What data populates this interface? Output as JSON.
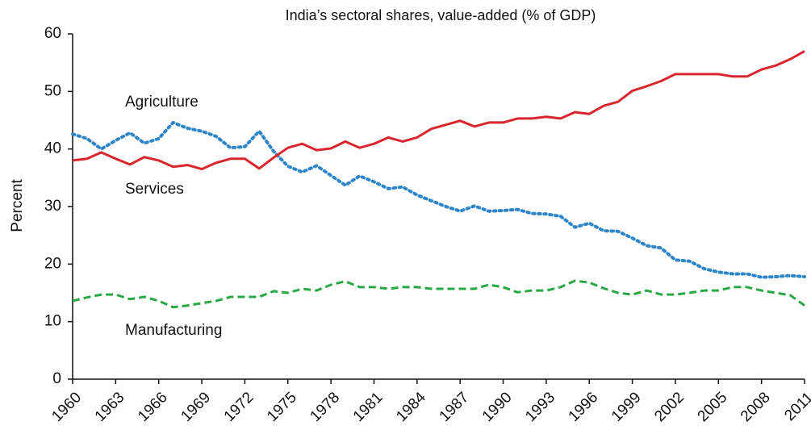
{
  "chart_data": {
    "type": "line",
    "title": "India’s sectoral shares, value-added (% of GDP)",
    "y_label": "Percent",
    "x": [
      1960,
      1961,
      1962,
      1963,
      1964,
      1965,
      1966,
      1967,
      1968,
      1969,
      1970,
      1971,
      1972,
      1973,
      1974,
      1975,
      1976,
      1977,
      1978,
      1979,
      1980,
      1981,
      1982,
      1983,
      1984,
      1985,
      1986,
      1987,
      1988,
      1989,
      1990,
      1991,
      1992,
      1993,
      1994,
      1995,
      1996,
      1997,
      1998,
      1999,
      2000,
      2001,
      2002,
      2003,
      2004,
      2005,
      2006,
      2007,
      2008,
      2009,
      2010,
      2011
    ],
    "series": [
      {
        "name": "Agriculture",
        "color": "#2e86c8",
        "style": "dotted",
        "values": [
          42.6,
          41.8,
          40,
          41.5,
          42.8,
          41,
          41.8,
          44.6,
          43.6,
          43.1,
          42.2,
          40.2,
          40.4,
          43.1,
          39.6,
          37,
          36,
          37.1,
          35.4,
          33.7,
          35.3,
          34.3,
          33.1,
          33.4,
          32,
          31,
          30,
          29.2,
          30.1,
          29.2,
          29.3,
          29.5,
          28.8,
          28.7,
          28.3,
          26.4,
          27.1,
          25.8,
          25.7,
          24.5,
          23.2,
          22.8,
          20.7,
          20.5,
          19.2,
          18.6,
          18.3,
          18.3,
          17.7,
          17.8,
          18,
          17.8
        ]
      },
      {
        "name": "Services",
        "color": "#d7262d",
        "style": "solid",
        "values": [
          38,
          38.3,
          39.4,
          38.3,
          37.3,
          38.6,
          38,
          36.9,
          37.2,
          36.5,
          37.6,
          38.3,
          38.3,
          36.6,
          38.5,
          40.2,
          40.9,
          39.8,
          40.1,
          41.3,
          40.2,
          40.9,
          42,
          41.3,
          42,
          43.5,
          44.2,
          44.9,
          43.9,
          44.6,
          44.6,
          45.3,
          45.3,
          45.6,
          45.3,
          46.4,
          46.1,
          47.5,
          48.2,
          50.1,
          50.9,
          51.8,
          53,
          53,
          53,
          53,
          52.6,
          52.6,
          53.8,
          54.5,
          55.6,
          57
        ]
      },
      {
        "name": "Manufacturing",
        "color": "#27a844",
        "style": "dashed",
        "values": [
          13.6,
          14.2,
          14.7,
          14.7,
          13.9,
          14.3,
          13.6,
          12.5,
          12.8,
          13.2,
          13.6,
          14.3,
          14.3,
          14.3,
          15.3,
          15,
          15.7,
          15.4,
          16.4,
          17,
          16,
          16,
          15.7,
          16,
          16,
          15.7,
          15.7,
          15.7,
          15.7,
          16.4,
          16,
          15.1,
          15.4,
          15.4,
          16,
          17.1,
          16.8,
          15.8,
          15,
          14.7,
          15.4,
          14.7,
          14.7,
          15,
          15.4,
          15.4,
          16,
          16,
          15.4,
          15,
          14.6,
          12.8
        ]
      }
    ],
    "xlim": [
      1960,
      2011
    ],
    "xticks": [
      1960,
      1963,
      1966,
      1969,
      1972,
      1975,
      1978,
      1981,
      1984,
      1987,
      1990,
      1993,
      1996,
      1999,
      2002,
      2005,
      2008,
      2011
    ],
    "ylim": [
      0,
      60
    ],
    "yticks": [
      0,
      10,
      20,
      30,
      40,
      50,
      60
    ],
    "grid": false
  }
}
